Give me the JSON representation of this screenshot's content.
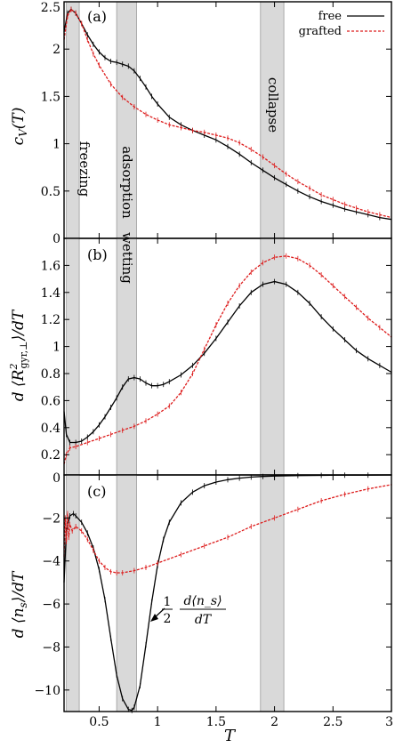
{
  "figure": {
    "xlabel": "T",
    "xlim": [
      0.2,
      3.0
    ],
    "xticks": [
      0.5,
      1,
      1.5,
      2,
      2.5,
      3
    ],
    "xtick_labels": [
      "0.5",
      "1",
      "1.5",
      "2",
      "2.5",
      "3"
    ],
    "colors": {
      "free": "#000000",
      "grafted": "#dd1c1c",
      "band": "#d9d9d9"
    },
    "legend": {
      "position": "top-right",
      "free": "free",
      "grafted": "grafted"
    }
  },
  "chart_data": [
    {
      "type": "line",
      "panel_label": "(a)",
      "ylabel": "c_V(T)",
      "ylim": [
        0,
        2.5
      ],
      "yticks": [
        0,
        0.5,
        1,
        1.5,
        2,
        2.5
      ],
      "ytick_labels": [
        "0",
        "0.5",
        "1",
        "1.5",
        "2",
        "2.5"
      ],
      "bands": [
        {
          "from": 0.22,
          "to": 0.33,
          "label": "freezing",
          "color": "black"
        },
        {
          "from": 0.65,
          "to": 0.82,
          "label": "adsorption",
          "color": "black"
        },
        {
          "from": 1.88,
          "to": 2.08,
          "label": "collapse",
          "color": "black"
        }
      ],
      "series": [
        {
          "name": "free",
          "x": [
            0.2,
            0.23,
            0.26,
            0.3,
            0.35,
            0.4,
            0.45,
            0.5,
            0.55,
            0.6,
            0.65,
            0.7,
            0.75,
            0.8,
            0.85,
            0.9,
            0.95,
            1.0,
            1.1,
            1.2,
            1.3,
            1.4,
            1.5,
            1.6,
            1.7,
            1.8,
            1.9,
            2.0,
            2.1,
            2.2,
            2.3,
            2.4,
            2.5,
            2.6,
            2.7,
            2.8,
            2.9,
            3.0
          ],
          "y": [
            2.18,
            2.38,
            2.42,
            2.38,
            2.27,
            2.15,
            2.05,
            1.97,
            1.91,
            1.87,
            1.86,
            1.84,
            1.82,
            1.77,
            1.69,
            1.6,
            1.5,
            1.42,
            1.28,
            1.2,
            1.14,
            1.09,
            1.04,
            0.97,
            0.89,
            0.8,
            0.72,
            0.64,
            0.57,
            0.5,
            0.44,
            0.39,
            0.35,
            0.31,
            0.28,
            0.25,
            0.22,
            0.2
          ]
        },
        {
          "name": "grafted",
          "x": [
            0.2,
            0.23,
            0.26,
            0.3,
            0.35,
            0.4,
            0.45,
            0.5,
            0.6,
            0.7,
            0.8,
            0.9,
            1.0,
            1.1,
            1.2,
            1.3,
            1.4,
            1.5,
            1.6,
            1.7,
            1.8,
            1.9,
            2.0,
            2.1,
            2.2,
            2.3,
            2.4,
            2.5,
            2.6,
            2.7,
            2.8,
            2.9,
            3.0
          ],
          "y": [
            2.1,
            2.35,
            2.42,
            2.38,
            2.27,
            2.1,
            1.95,
            1.83,
            1.63,
            1.49,
            1.39,
            1.31,
            1.25,
            1.2,
            1.17,
            1.14,
            1.12,
            1.09,
            1.06,
            1.01,
            0.94,
            0.86,
            0.77,
            0.68,
            0.6,
            0.53,
            0.46,
            0.41,
            0.36,
            0.32,
            0.28,
            0.25,
            0.22
          ]
        }
      ]
    },
    {
      "type": "line",
      "panel_label": "(b)",
      "ylabel": "d⟨R²_gyr,⊥⟩/dT",
      "ylim": [
        0.05,
        1.8
      ],
      "yticks": [
        0.2,
        0.4,
        0.6,
        0.8,
        1,
        1.2,
        1.4,
        1.6
      ],
      "ytick_labels": [
        "0.2",
        "0.4",
        "0.6",
        "0.8",
        "1",
        "1.2",
        "1.4",
        "1.6"
      ],
      "bands": [
        {
          "from": 0.22,
          "to": 0.33,
          "label": "",
          "color": "black"
        },
        {
          "from": 0.65,
          "to": 0.82,
          "label": "wetting",
          "color": "red"
        },
        {
          "from": 1.88,
          "to": 2.08,
          "label": "",
          "color": "black"
        }
      ],
      "series": [
        {
          "name": "free",
          "x": [
            0.2,
            0.22,
            0.25,
            0.3,
            0.35,
            0.4,
            0.45,
            0.5,
            0.55,
            0.6,
            0.65,
            0.7,
            0.75,
            0.8,
            0.85,
            0.9,
            0.95,
            1.0,
            1.05,
            1.1,
            1.2,
            1.3,
            1.4,
            1.5,
            1.6,
            1.7,
            1.8,
            1.9,
            2.0,
            2.1,
            2.2,
            2.3,
            2.4,
            2.5,
            2.6,
            2.7,
            2.8,
            2.9,
            3.0
          ],
          "y": [
            0.52,
            0.35,
            0.29,
            0.29,
            0.3,
            0.33,
            0.37,
            0.42,
            0.48,
            0.55,
            0.62,
            0.7,
            0.76,
            0.77,
            0.76,
            0.73,
            0.71,
            0.71,
            0.72,
            0.74,
            0.79,
            0.86,
            0.95,
            1.06,
            1.18,
            1.3,
            1.4,
            1.46,
            1.48,
            1.46,
            1.4,
            1.32,
            1.22,
            1.13,
            1.05,
            0.97,
            0.91,
            0.86,
            0.81
          ]
        },
        {
          "name": "grafted",
          "x": [
            0.2,
            0.22,
            0.25,
            0.3,
            0.4,
            0.5,
            0.6,
            0.7,
            0.8,
            0.9,
            1.0,
            1.1,
            1.2,
            1.3,
            1.4,
            1.5,
            1.6,
            1.7,
            1.8,
            1.9,
            2.0,
            2.1,
            2.2,
            2.3,
            2.4,
            2.5,
            2.6,
            2.7,
            2.8,
            2.9,
            3.0
          ],
          "y": [
            0.13,
            0.2,
            0.25,
            0.26,
            0.29,
            0.32,
            0.35,
            0.38,
            0.41,
            0.45,
            0.5,
            0.56,
            0.66,
            0.8,
            0.98,
            1.16,
            1.32,
            1.45,
            1.55,
            1.62,
            1.66,
            1.67,
            1.65,
            1.6,
            1.53,
            1.45,
            1.37,
            1.29,
            1.21,
            1.14,
            1.07
          ]
        }
      ]
    },
    {
      "type": "line",
      "panel_label": "(c)",
      "ylabel": "d⟨n_s⟩/dT",
      "ylim": [
        -11,
        0
      ],
      "yticks": [
        -10,
        -8,
        -6,
        -4,
        -2,
        0
      ],
      "ytick_labels": [
        "−10",
        "−8",
        "−6",
        "−4",
        "−2",
        "0"
      ],
      "bands": [
        {
          "from": 0.22,
          "to": 0.33,
          "label": "",
          "color": "black"
        },
        {
          "from": 0.65,
          "to": 0.82,
          "label": "",
          "color": "black"
        },
        {
          "from": 1.88,
          "to": 2.08,
          "label": "",
          "color": "black"
        }
      ],
      "annotation": {
        "text_half": "1",
        "text_den": "2",
        "frac_num": "d⟨n_s⟩",
        "frac_den": "dT",
        "x": 0.95,
        "y": -7.7
      },
      "series": [
        {
          "name": "free",
          "x": [
            0.2,
            0.22,
            0.25,
            0.28,
            0.3,
            0.35,
            0.4,
            0.45,
            0.5,
            0.55,
            0.6,
            0.65,
            0.7,
            0.75,
            0.78,
            0.8,
            0.85,
            0.9,
            0.95,
            1.0,
            1.05,
            1.1,
            1.2,
            1.3,
            1.4,
            1.5,
            1.6,
            1.7,
            1.8,
            1.9,
            2.0,
            2.2,
            2.4,
            2.6,
            2.8,
            3.0
          ],
          "y": [
            -5.0,
            -2.6,
            -1.9,
            -1.8,
            -1.9,
            -2.2,
            -2.7,
            -3.4,
            -4.4,
            -5.8,
            -7.6,
            -9.3,
            -10.4,
            -10.9,
            -10.95,
            -10.8,
            -9.8,
            -7.9,
            -5.9,
            -4.2,
            -3.0,
            -2.2,
            -1.3,
            -0.8,
            -0.5,
            -0.33,
            -0.22,
            -0.15,
            -0.1,
            -0.07,
            -0.05,
            -0.03,
            -0.02,
            -0.01,
            -0.01,
            0
          ]
        },
        {
          "name": "grafted",
          "x": [
            0.2,
            0.21,
            0.22,
            0.23,
            0.24,
            0.25,
            0.27,
            0.3,
            0.35,
            0.4,
            0.45,
            0.5,
            0.55,
            0.6,
            0.65,
            0.7,
            0.8,
            0.9,
            1.0,
            1.2,
            1.4,
            1.6,
            1.8,
            2.0,
            2.2,
            2.4,
            2.6,
            2.8,
            3.0
          ],
          "y": [
            -3.8,
            -2.0,
            -3.1,
            -1.8,
            -2.9,
            -2.3,
            -2.6,
            -2.4,
            -2.6,
            -3.0,
            -3.5,
            -4.0,
            -4.3,
            -4.5,
            -4.55,
            -4.55,
            -4.45,
            -4.3,
            -4.1,
            -3.7,
            -3.3,
            -2.9,
            -2.4,
            -2.0,
            -1.6,
            -1.2,
            -0.9,
            -0.65,
            -0.45
          ]
        }
      ]
    }
  ]
}
